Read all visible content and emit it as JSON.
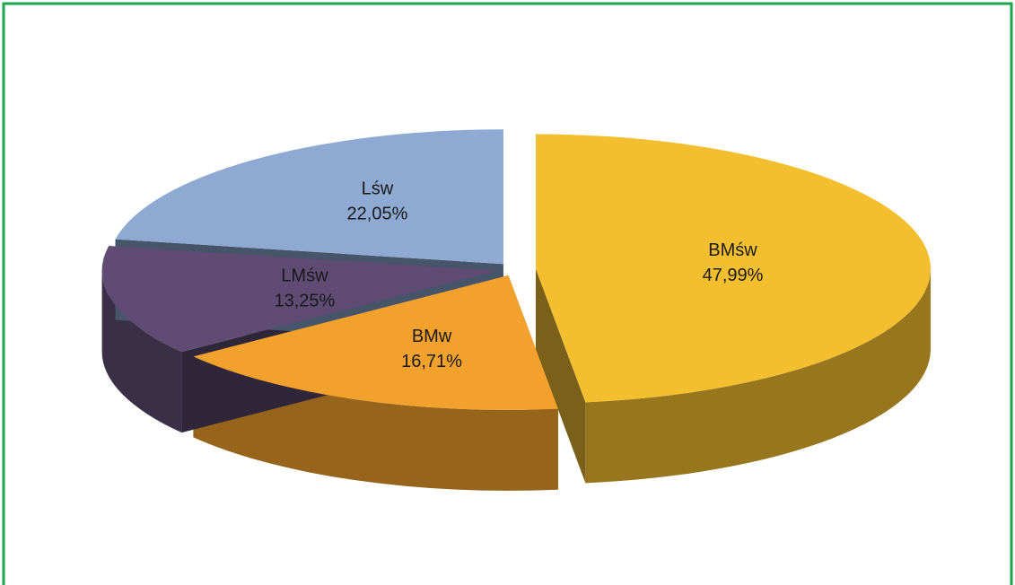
{
  "chart_data": {
    "type": "pie",
    "categories": [
      "BMśw",
      "BMw",
      "LMśw",
      "Lśw"
    ],
    "values": [
      47.99,
      16.71,
      13.25,
      22.05
    ],
    "value_labels": [
      "47,99%",
      "16,71%",
      "13,25%",
      "22,05%"
    ],
    "colors": [
      "#f4bf2f",
      "#f2a12c",
      "#5f4b73",
      "#8eaad3"
    ]
  }
}
